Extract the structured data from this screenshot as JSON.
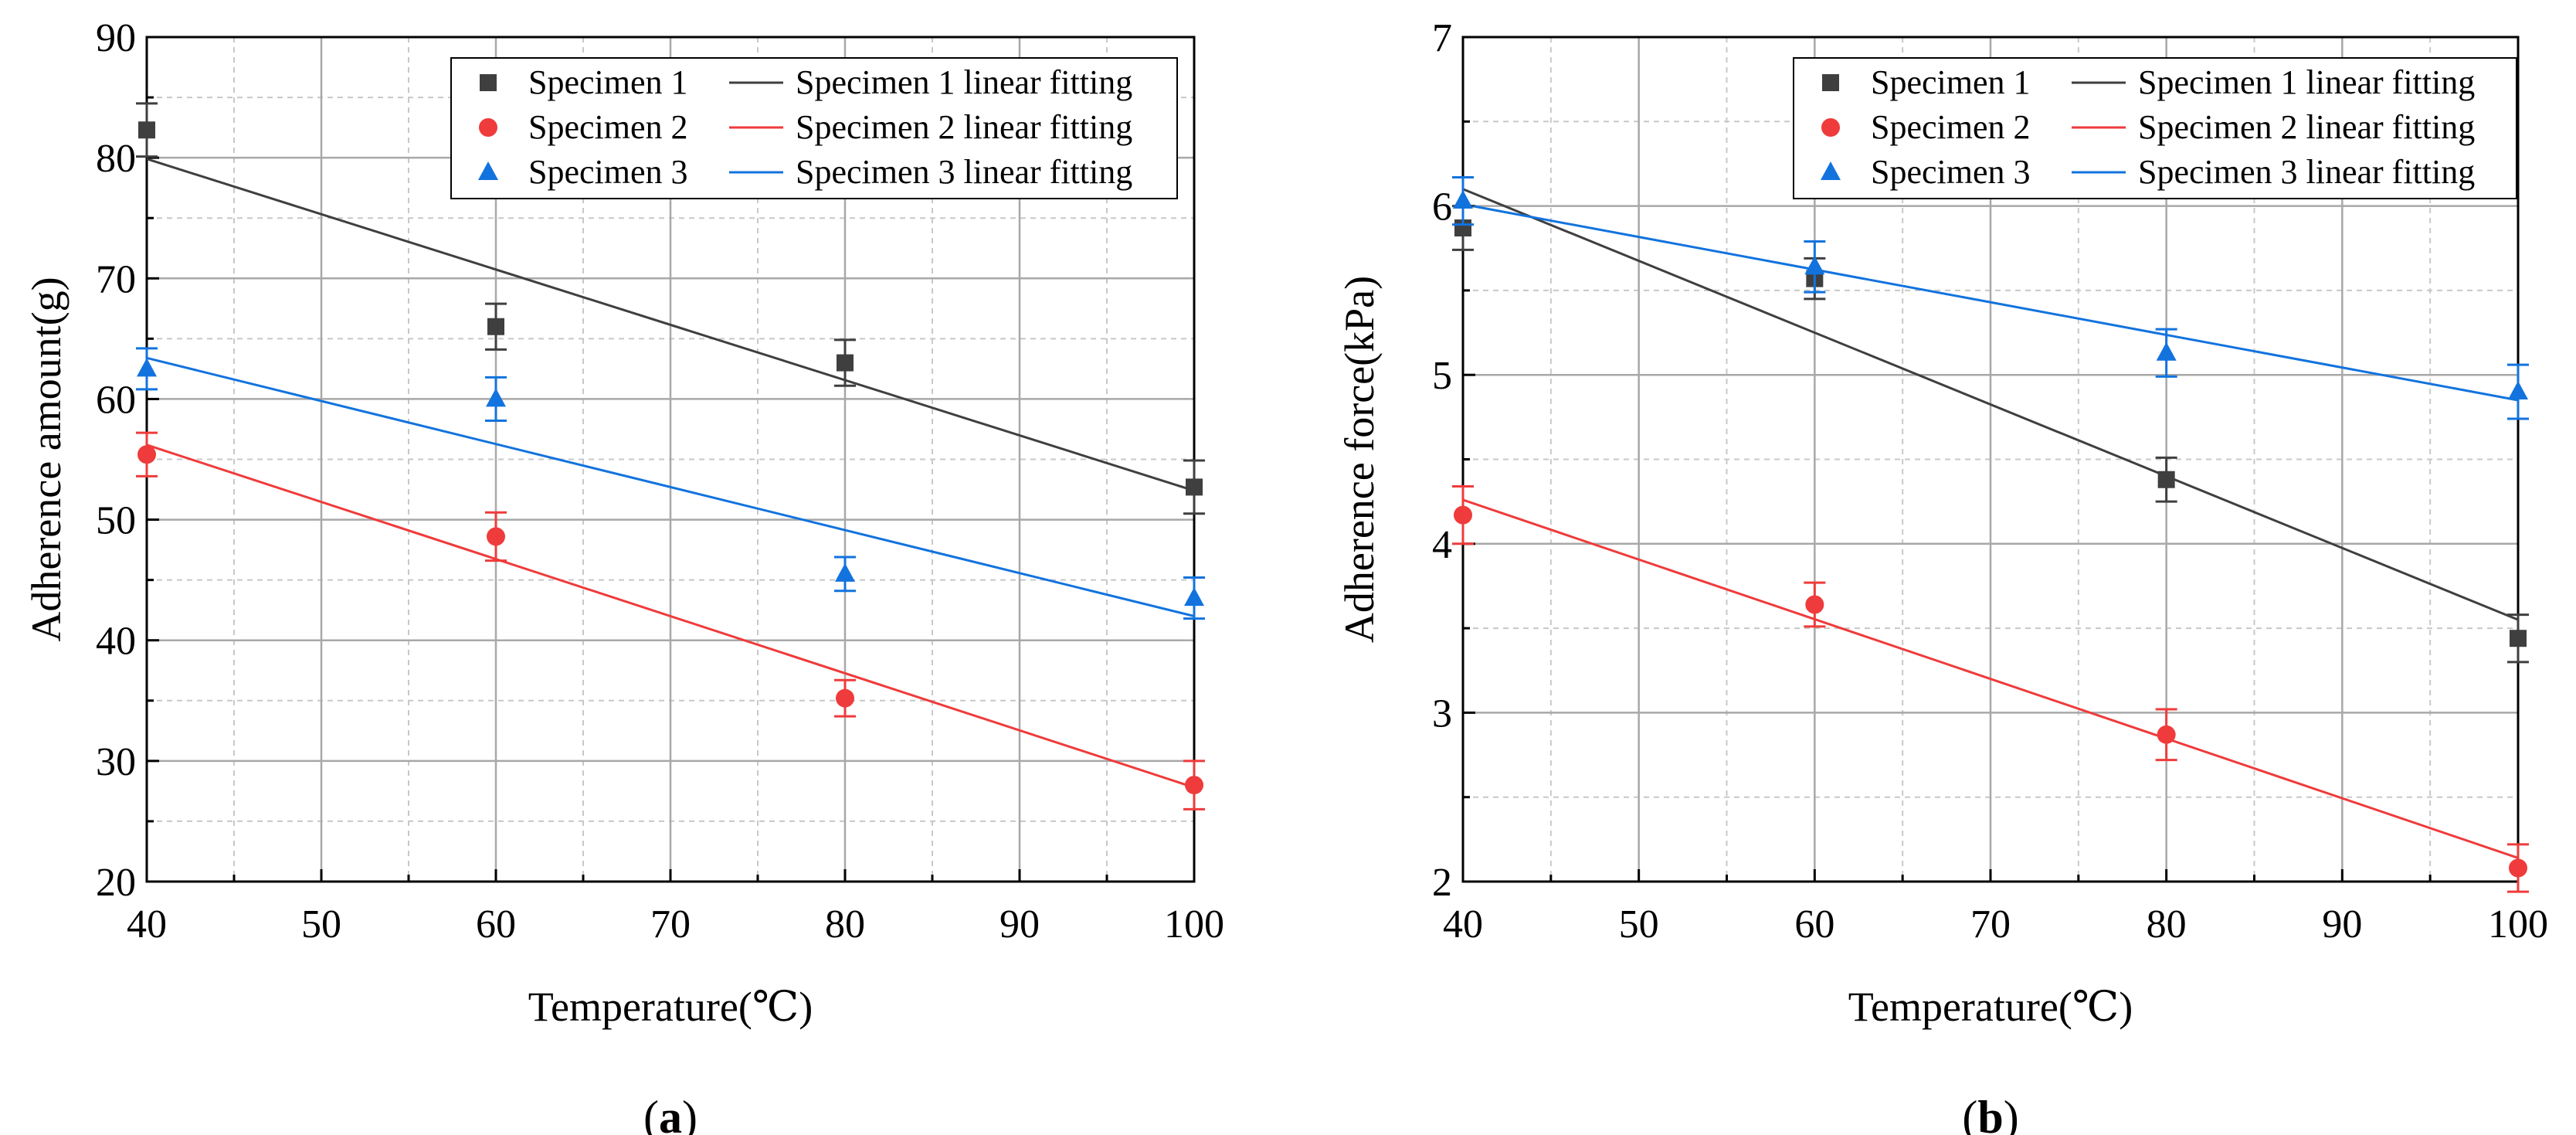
{
  "chart_data": [
    {
      "type": "scatter",
      "panel_label": "a",
      "xlabel": "Temperature(℃)",
      "ylabel": "Adherence amount(g)",
      "xlim": [
        40,
        100
      ],
      "ylim": [
        20,
        90
      ],
      "xticks": [
        40,
        50,
        60,
        70,
        80,
        90,
        100
      ],
      "yticks": [
        20,
        30,
        40,
        50,
        60,
        70,
        80,
        90
      ],
      "grid": true,
      "legend_position": "top-right",
      "series": [
        {
          "name": "Specimen 1",
          "fit_name": "Specimen 1 linear fitting",
          "marker": "square",
          "color": "#3f3f3f",
          "x": [
            40,
            60,
            80,
            100
          ],
          "y": [
            82.3,
            66.0,
            63.0,
            52.7
          ],
          "err": [
            2.2,
            1.9,
            1.9,
            2.2
          ],
          "fit": [
            79.9,
            52.4
          ]
        },
        {
          "name": "Specimen 2",
          "fit_name": "Specimen 2 linear fitting",
          "marker": "circle",
          "color": "#ef3b3b",
          "x": [
            40,
            60,
            80,
            100
          ],
          "y": [
            55.4,
            48.6,
            35.2,
            28.0
          ],
          "err": [
            1.8,
            2.0,
            1.5,
            2.0
          ],
          "fit": [
            56.2,
            27.8
          ]
        },
        {
          "name": "Specimen 3",
          "fit_name": "Specimen 3 linear fitting",
          "marker": "triangle",
          "color": "#1273de",
          "x": [
            40,
            60,
            80,
            100
          ],
          "y": [
            62.5,
            60.0,
            45.5,
            43.5
          ],
          "err": [
            1.7,
            1.8,
            1.4,
            1.7
          ],
          "fit": [
            63.4,
            42.0
          ]
        }
      ]
    },
    {
      "type": "scatter",
      "panel_label": "b",
      "xlabel": "Temperature(℃)",
      "ylabel": "Adherence force(kPa)",
      "xlim": [
        40,
        100
      ],
      "ylim": [
        2,
        7
      ],
      "xticks": [
        40,
        50,
        60,
        70,
        80,
        90,
        100
      ],
      "yticks": [
        2,
        3,
        4,
        5,
        6,
        7
      ],
      "grid": true,
      "legend_position": "top-right",
      "series": [
        {
          "name": "Specimen 1",
          "fit_name": "Specimen 1 linear fitting",
          "marker": "square",
          "color": "#3f3f3f",
          "x": [
            40,
            60,
            80,
            100
          ],
          "y": [
            5.87,
            5.57,
            4.38,
            3.44
          ],
          "err": [
            0.13,
            0.12,
            0.13,
            0.14
          ],
          "fit": [
            6.1,
            3.55
          ]
        },
        {
          "name": "Specimen 2",
          "fit_name": "Specimen 2 linear fitting",
          "marker": "circle",
          "color": "#ef3b3b",
          "x": [
            40,
            60,
            80,
            100
          ],
          "y": [
            4.17,
            3.64,
            2.87,
            2.08
          ],
          "err": [
            0.17,
            0.13,
            0.15,
            0.14
          ],
          "fit": [
            4.26,
            2.14
          ]
        },
        {
          "name": "Specimen 3",
          "fit_name": "Specimen 3 linear fitting",
          "marker": "triangle",
          "color": "#1273de",
          "x": [
            40,
            60,
            80,
            100
          ],
          "y": [
            6.03,
            5.64,
            5.13,
            4.9
          ],
          "err": [
            0.14,
            0.15,
            0.14,
            0.16
          ],
          "fit": [
            6.01,
            4.85
          ]
        }
      ]
    }
  ]
}
